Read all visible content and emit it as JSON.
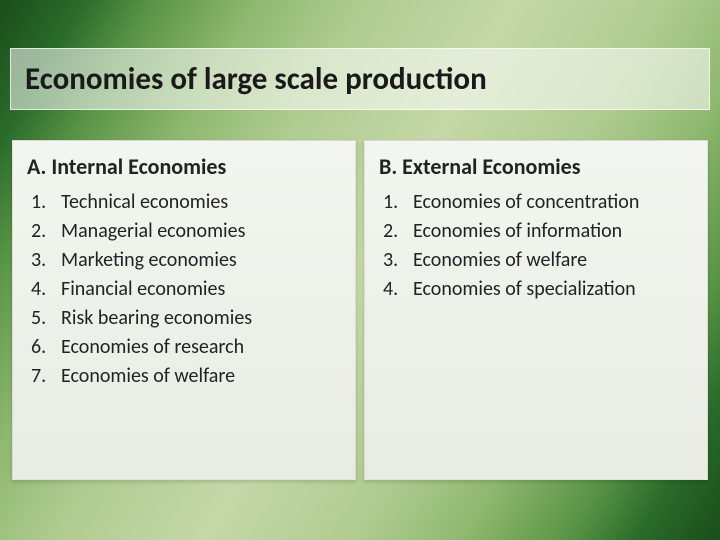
{
  "slide": {
    "title": "Economies of large scale production",
    "left": {
      "heading": "A. Internal Economies",
      "items": [
        "Technical economies",
        "Managerial economies",
        "Marketing economies",
        "Financial economies",
        "Risk bearing economies",
        "Economies of research",
        "Economies of welfare"
      ]
    },
    "right": {
      "heading": "B. External Economies",
      "items": [
        "Economies of concentration",
        "Economies of information",
        "Economies of welfare",
        "Economies of specialization"
      ]
    }
  },
  "style": {
    "title_fontsize": 31,
    "heading_fontsize": 22,
    "item_fontsize": 20,
    "text_color": "#1a1a1a",
    "card_bg_top": "#f3f6f0",
    "card_bg_bottom": "#e8ece3",
    "title_bar_bg": "rgba(255,255,255,0.55)",
    "background_gradient": [
      "#1a4d1a",
      "#2a6b2a",
      "#5a9447",
      "#8fb870",
      "#aecb90",
      "#c5d8a8"
    ]
  }
}
